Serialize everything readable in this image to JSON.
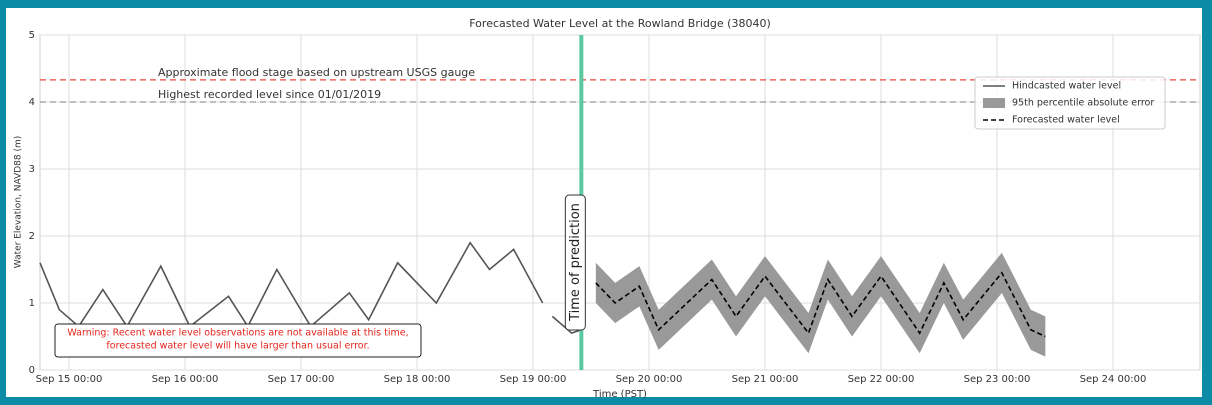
{
  "chart_data": {
    "type": "line",
    "title": "Forecasted Water Level at the Rowland Bridge (38040)",
    "x_label": "Time (PST)",
    "y_label": "Water Elevation, NAVD88 (m)",
    "xlim": [
      "Sep 14 18:00",
      "Sep 24 18:00"
    ],
    "xticks": [
      "Sep 15 00:00",
      "Sep 16 00:00",
      "Sep 17 00:00",
      "Sep 18 00:00",
      "Sep 19 00:00",
      "Sep 20 00:00",
      "Sep 21 00:00",
      "Sep 22 00:00",
      "Sep 23 00:00",
      "Sep 24 00:00"
    ],
    "ylim": [
      0,
      5
    ],
    "yticks": [
      0,
      1,
      2,
      3,
      4,
      5
    ],
    "grid": true,
    "legend": "upper right",
    "series": [
      {
        "name": "Hindcasted water level",
        "color": "#555555",
        "x": [
          "Sep 14 18:00",
          "Sep 14 22:00",
          "Sep 15 02:00",
          "Sep 15 07:00",
          "Sep 15 12:00",
          "Sep 15 19:00",
          "Sep 16 01:00",
          "Sep 16 09:00",
          "Sep 16 13:00",
          "Sep 16 19:00",
          "Sep 17 02:00",
          "Sep 17 10:00",
          "Sep 17 14:00",
          "Sep 17 20:00",
          "Sep 18 04:00",
          "Sep 18 11:00",
          "Sep 18 15:00",
          "Sep 18 20:00",
          "Sep 19 02:00",
          "Sep 19 03:00",
          "Sep 19 04:00",
          "Sep 19 08:00",
          "Sep 19 10:00"
        ],
        "values": [
          1.6,
          0.9,
          0.65,
          1.2,
          0.65,
          1.55,
          0.65,
          1.1,
          0.65,
          1.5,
          0.65,
          1.15,
          0.75,
          1.6,
          1.0,
          1.9,
          1.5,
          1.8,
          1.0,
          null,
          0.8,
          0.55,
          0.6
        ]
      },
      {
        "name": "Forecasted water level",
        "color": "#000000",
        "dashed": true,
        "error_name": "95th percentile absolute error",
        "error_color": "#999999",
        "x": [
          "Sep 19 13:00",
          "Sep 19 17:00",
          "Sep 19 22:00",
          "Sep 20 02:00",
          "Sep 20 13:00",
          "Sep 20 18:00",
          "Sep 21 00:00",
          "Sep 21 09:00",
          "Sep 21 13:00",
          "Sep 21 18:00",
          "Sep 22 00:00",
          "Sep 22 08:00",
          "Sep 22 13:00",
          "Sep 22 17:00",
          "Sep 23 01:00",
          "Sep 23 07:00",
          "Sep 23 10:00"
        ],
        "values": [
          1.3,
          1.0,
          1.25,
          0.6,
          1.35,
          0.8,
          1.4,
          0.55,
          1.35,
          0.8,
          1.4,
          0.55,
          1.3,
          0.75,
          1.45,
          0.6,
          0.5
        ],
        "error": [
          0.3,
          0.3,
          0.3,
          0.3,
          0.3,
          0.3,
          0.3,
          0.3,
          0.3,
          0.3,
          0.3,
          0.3,
          0.3,
          0.3,
          0.3,
          0.3,
          0.3
        ]
      }
    ],
    "hlines": [
      {
        "value": 4.33,
        "label": "Approximate flood stage based on upstream USGS gauge",
        "color": "#e8483c"
      },
      {
        "value": 4.0,
        "label": "Highest recorded level since 01/01/2019",
        "color": "#999999"
      }
    ],
    "vline": {
      "x": "Sep 19 10:00",
      "label": "Time of prediction",
      "color": "#5cc8a0"
    },
    "warning": [
      "Warning: Recent water level observations are not available at this time,",
      "forecasted water level will have larger than usual error."
    ]
  }
}
